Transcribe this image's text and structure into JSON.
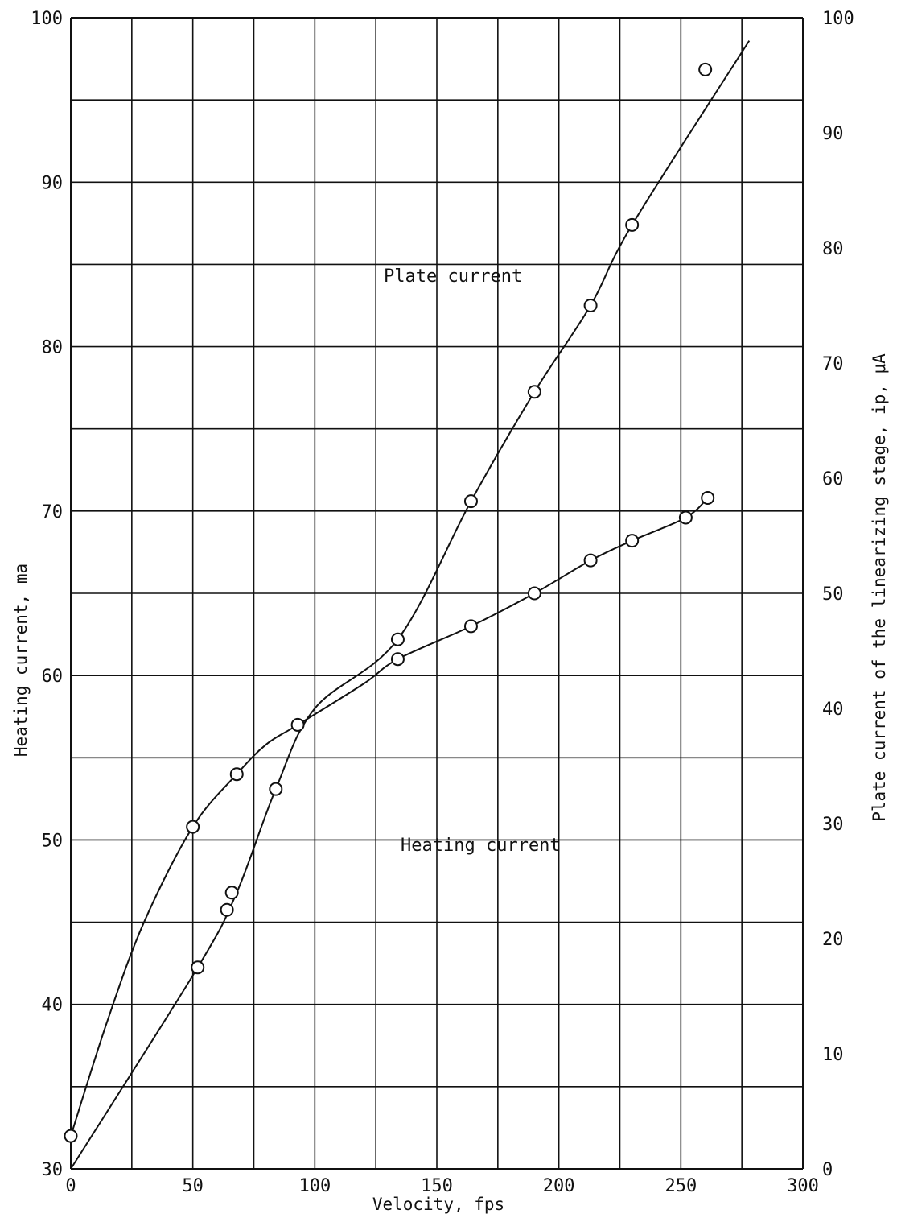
{
  "chart_data": {
    "type": "line",
    "xlabel": "Velocity, fps",
    "ylabel_left": "Heating current, ma",
    "ylabel_right": "Plate current of the linearizing stage, ip, μA",
    "xlim": [
      0,
      300
    ],
    "ylim_left": [
      30,
      100
    ],
    "ylim_right": [
      0,
      100
    ],
    "x_ticks": [
      0,
      50,
      100,
      150,
      200,
      250,
      300
    ],
    "y_left_ticks": [
      30,
      40,
      50,
      60,
      70,
      80,
      90,
      100
    ],
    "y_right_ticks": [
      0,
      10,
      20,
      30,
      40,
      50,
      60,
      70,
      80,
      90,
      100
    ],
    "grid": true,
    "annotations": [
      "Plate current",
      "Heating current"
    ],
    "series": [
      {
        "name": "Plate current",
        "axis": "right",
        "points": [
          [
            52,
            17.5
          ],
          [
            64,
            22.5
          ],
          [
            66,
            24
          ],
          [
            84,
            33
          ],
          [
            134,
            46
          ],
          [
            164,
            58
          ],
          [
            190,
            67.5
          ],
          [
            213,
            75
          ],
          [
            230,
            82
          ],
          [
            260,
            95.5
          ]
        ],
        "curve": [
          [
            0,
            0
          ],
          [
            52,
            17.5
          ],
          [
            68,
            24
          ],
          [
            84,
            33
          ],
          [
            100,
            40
          ],
          [
            134,
            46
          ],
          [
            164,
            58
          ],
          [
            190,
            67.5
          ],
          [
            213,
            75
          ],
          [
            230,
            82
          ],
          [
            278,
            98
          ]
        ]
      },
      {
        "name": "Heating current",
        "axis": "left",
        "points": [
          [
            0,
            32
          ],
          [
            50,
            50.8
          ],
          [
            68,
            54
          ],
          [
            93,
            57
          ],
          [
            134,
            61
          ],
          [
            164,
            63
          ],
          [
            190,
            65
          ],
          [
            213,
            67
          ],
          [
            230,
            68.2
          ],
          [
            252,
            69.6
          ],
          [
            261,
            70.8
          ]
        ],
        "curve": [
          [
            0,
            32
          ],
          [
            15,
            39
          ],
          [
            30,
            45
          ],
          [
            50,
            50.8
          ],
          [
            68,
            54
          ],
          [
            80,
            55.8
          ],
          [
            93,
            57
          ],
          [
            120,
            59.5
          ],
          [
            134,
            61
          ],
          [
            164,
            63
          ],
          [
            190,
            65
          ],
          [
            213,
            67
          ],
          [
            230,
            68.2
          ],
          [
            252,
            69.6
          ],
          [
            261,
            70.8
          ]
        ]
      }
    ]
  }
}
